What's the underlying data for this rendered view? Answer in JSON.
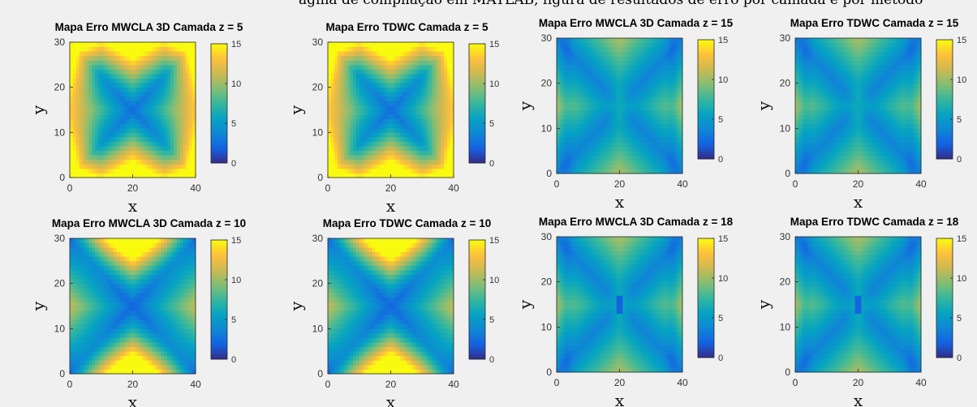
{
  "header": {
    "cut_title": "ágina de compilação em MATLAB, figura de resultados de erro por camada e por método"
  },
  "chart_data": [
    {
      "type": "heatmap",
      "title": "Mapa Erro MWCLA 3D Camada z = 5",
      "layer": 5,
      "method": "MWCLA 3D",
      "xlabel": "x",
      "ylabel": "y",
      "xlim": [
        0,
        40
      ],
      "ylim": [
        0,
        30
      ],
      "xticks": [
        "0",
        "20",
        "40"
      ],
      "yticks": [
        "0",
        "10",
        "20",
        "30"
      ],
      "clim": [
        0,
        15
      ],
      "cticks": [
        "0",
        "5",
        "10",
        "15"
      ],
      "colormap": "parula"
    },
    {
      "type": "heatmap",
      "title": "Mapa Erro TDWC Camada z = 5",
      "layer": 5,
      "method": "TDWC",
      "xlabel": "x",
      "ylabel": "y",
      "xlim": [
        0,
        40
      ],
      "ylim": [
        0,
        30
      ],
      "xticks": [
        "0",
        "20",
        "40"
      ],
      "yticks": [
        "0",
        "10",
        "20",
        "30"
      ],
      "clim": [
        0,
        15
      ],
      "cticks": [
        "0",
        "5",
        "10",
        "15"
      ],
      "colormap": "parula"
    },
    {
      "type": "heatmap",
      "title": "Mapa Erro MWCLA 3D Camada z = 15",
      "layer": 15,
      "method": "MWCLA 3D",
      "xlabel": "x",
      "ylabel": "y",
      "xlim": [
        0,
        40
      ],
      "ylim": [
        0,
        30
      ],
      "xticks": [
        "0",
        "20",
        "40"
      ],
      "yticks": [
        "0",
        "10",
        "20",
        "30"
      ],
      "clim": [
        0,
        15
      ],
      "cticks": [
        "0",
        "5",
        "10",
        "15"
      ],
      "colormap": "parula"
    },
    {
      "type": "heatmap",
      "title": "Mapa Erro TDWC Camada z = 15",
      "layer": 15,
      "method": "TDWC",
      "xlabel": "x",
      "ylabel": "y",
      "xlim": [
        0,
        40
      ],
      "ylim": [
        0,
        30
      ],
      "xticks": [
        "0",
        "20",
        "40"
      ],
      "yticks": [
        "0",
        "10",
        "20",
        "30"
      ],
      "clim": [
        0,
        15
      ],
      "cticks": [
        "0",
        "5",
        "10",
        "15"
      ],
      "colormap": "parula"
    },
    {
      "type": "heatmap",
      "title": "Mapa Erro MWCLA 3D Camada z = 10",
      "layer": 10,
      "method": "MWCLA 3D",
      "xlabel": "x",
      "ylabel": "y",
      "xlim": [
        0,
        40
      ],
      "ylim": [
        0,
        30
      ],
      "xticks": [
        "0",
        "20",
        "40"
      ],
      "yticks": [
        "0",
        "10",
        "20",
        "30"
      ],
      "clim": [
        0,
        15
      ],
      "cticks": [
        "0",
        "5",
        "10",
        "15"
      ],
      "colormap": "parula"
    },
    {
      "type": "heatmap",
      "title": "Mapa Erro TDWC Camada z = 10",
      "layer": 10,
      "method": "TDWC",
      "xlabel": "x",
      "ylabel": "y",
      "xlim": [
        0,
        40
      ],
      "ylim": [
        0,
        30
      ],
      "xticks": [
        "0",
        "20",
        "40"
      ],
      "yticks": [
        "0",
        "10",
        "20",
        "30"
      ],
      "clim": [
        0,
        15
      ],
      "cticks": [
        "0",
        "5",
        "10",
        "15"
      ],
      "colormap": "parula"
    },
    {
      "type": "heatmap",
      "title": "Mapa Erro MWCLA 3D Camada z = 18",
      "layer": 18,
      "method": "MWCLA 3D",
      "xlabel": "x",
      "ylabel": "y",
      "xlim": [
        0,
        40
      ],
      "ylim": [
        0,
        30
      ],
      "xticks": [
        "0",
        "20",
        "40"
      ],
      "yticks": [
        "0",
        "10",
        "20",
        "30"
      ],
      "clim": [
        0,
        15
      ],
      "cticks": [
        "0",
        "5",
        "10",
        "15"
      ],
      "colormap": "parula"
    },
    {
      "type": "heatmap",
      "title": "Mapa Erro TDWC Camada z = 18",
      "layer": 18,
      "method": "TDWC",
      "xlabel": "x",
      "ylabel": "y",
      "xlim": [
        0,
        40
      ],
      "ylim": [
        0,
        30
      ],
      "xticks": [
        "0",
        "20",
        "40"
      ],
      "yticks": [
        "0",
        "10",
        "20",
        "30"
      ],
      "clim": [
        0,
        15
      ],
      "cticks": [
        "0",
        "5",
        "10",
        "15"
      ],
      "colormap": "parula"
    }
  ]
}
